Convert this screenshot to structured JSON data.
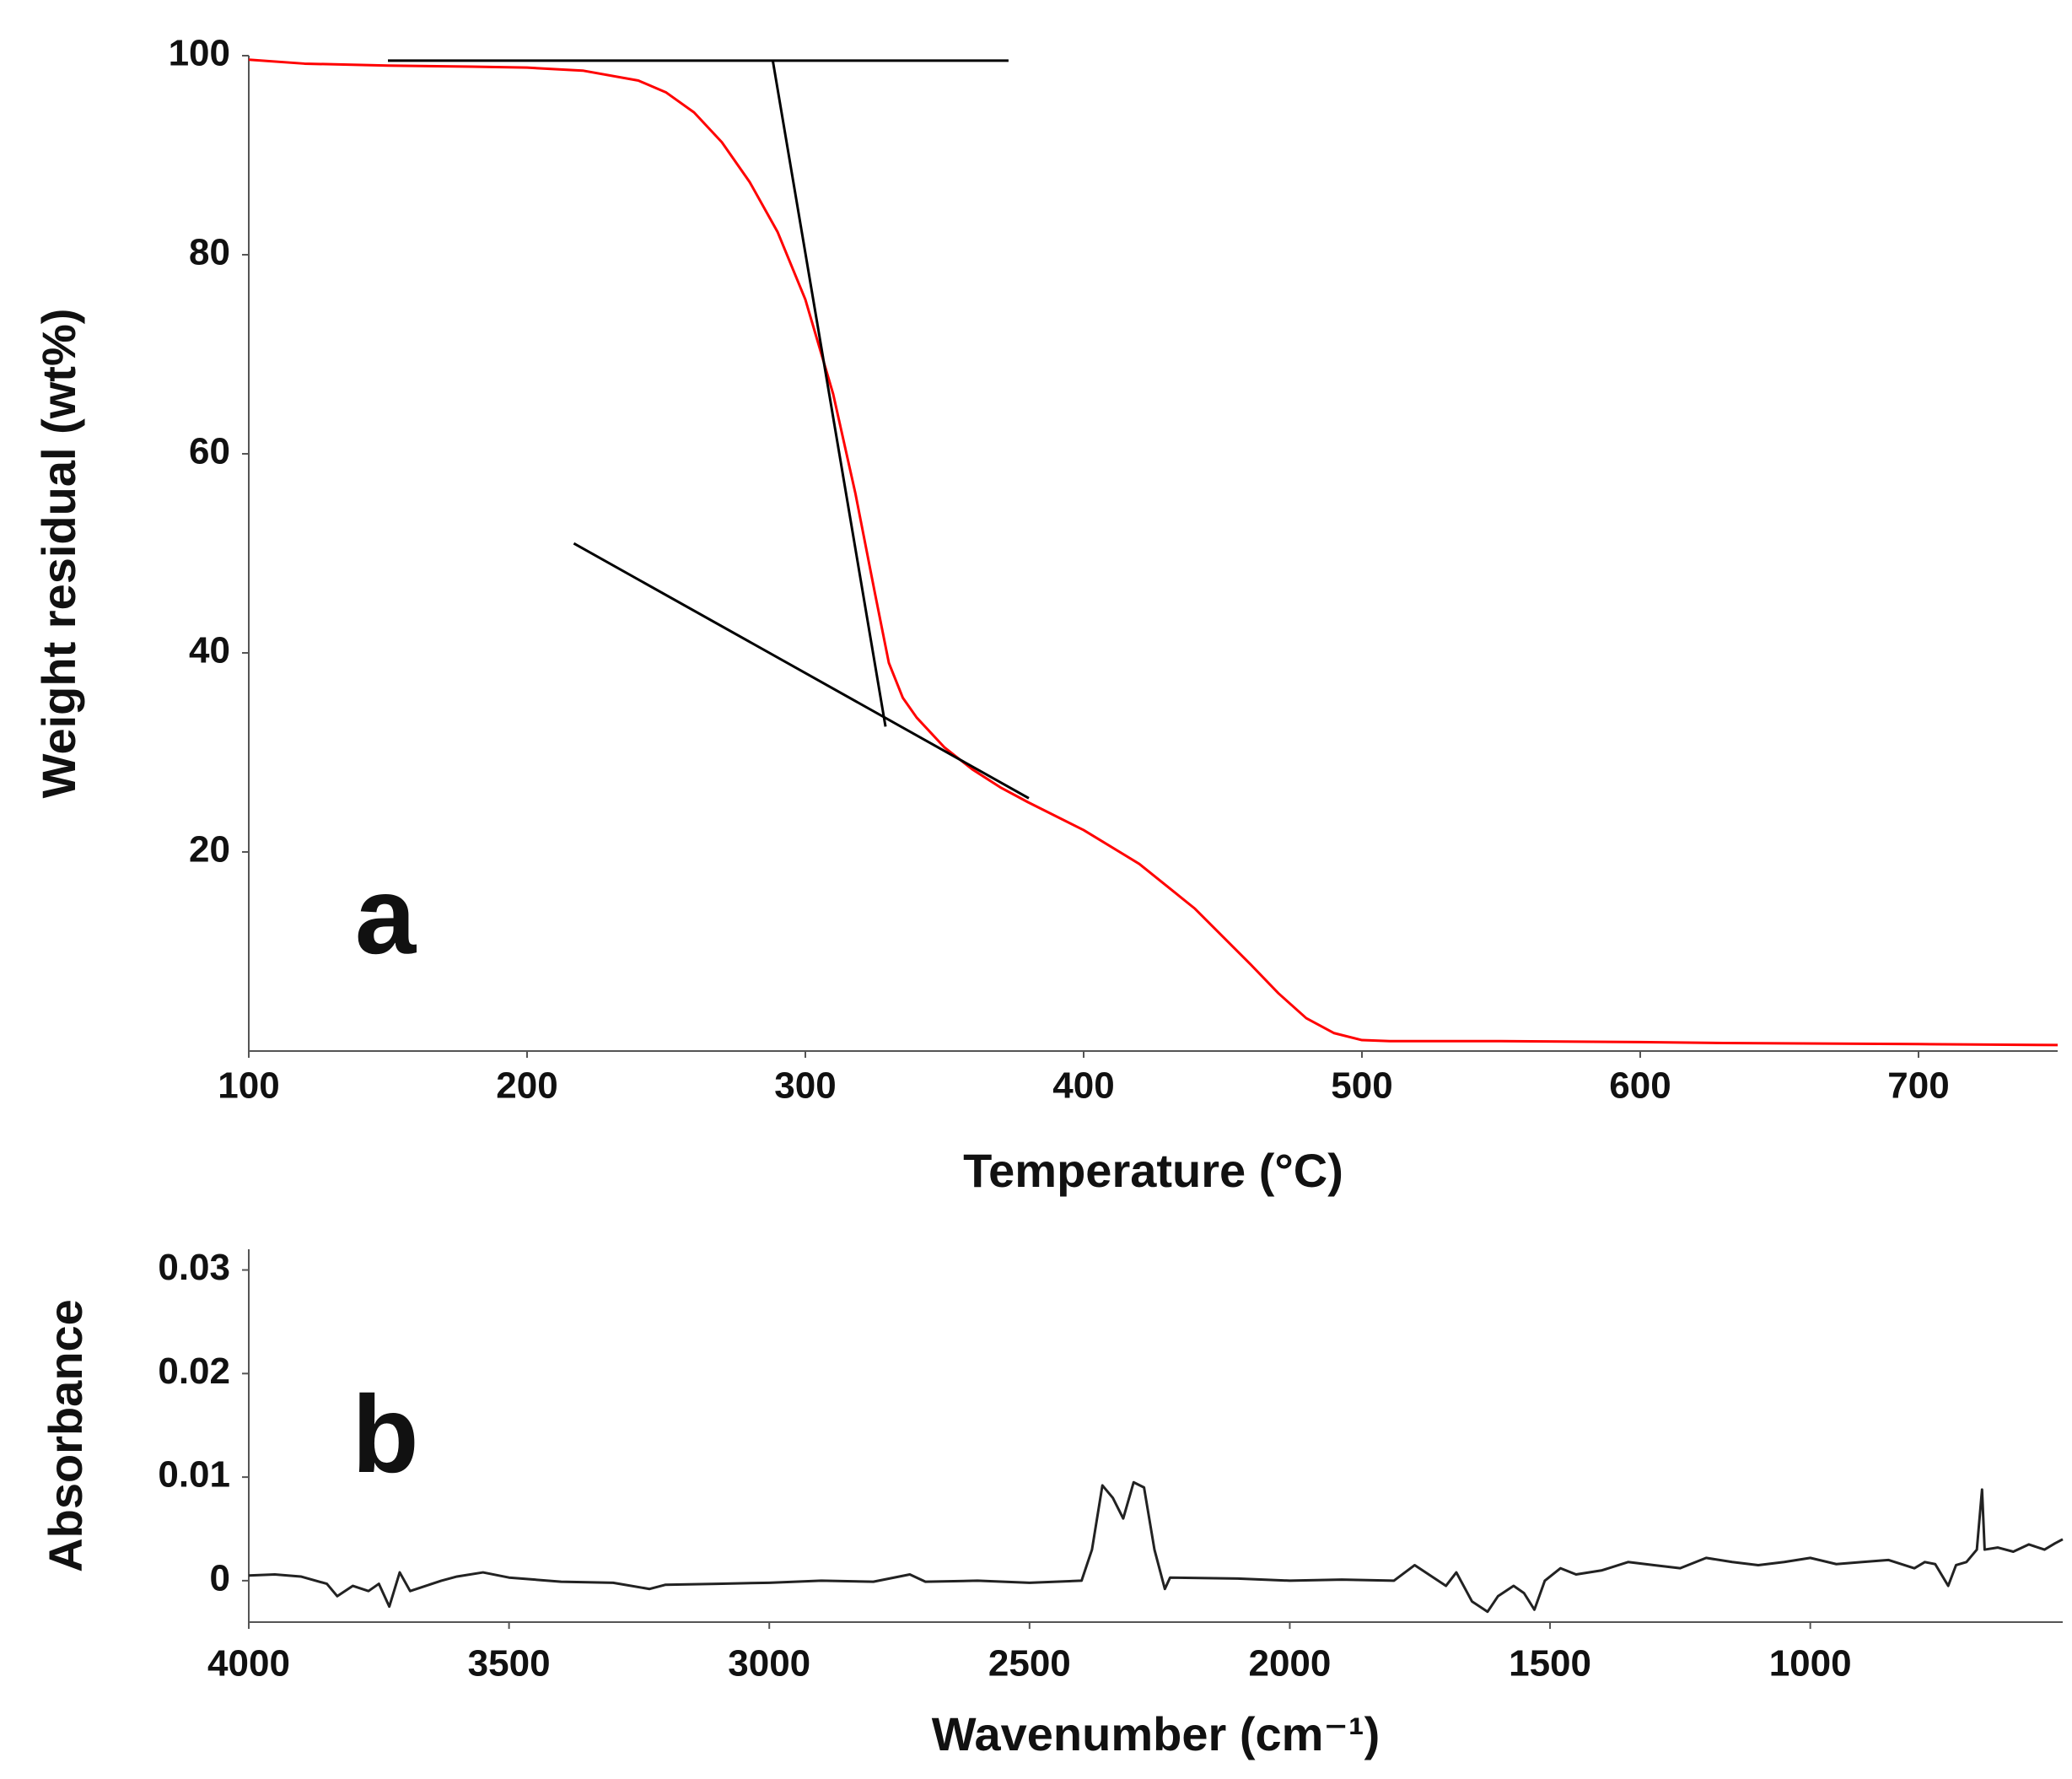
{
  "chart_data": [
    {
      "type": "line",
      "xlabel": "Temperature (°C)",
      "ylabel": "Weight residual (wt%)",
      "annotation": "a",
      "xlim": [
        100,
        750
      ],
      "xticks": [
        100,
        200,
        300,
        400,
        500,
        600,
        700
      ],
      "ylim": [
        0,
        100
      ],
      "yticks": [
        20,
        40,
        60,
        80,
        100
      ],
      "series": [
        {
          "color": "#ff0000",
          "x": [
            100,
            120,
            150,
            180,
            200,
            220,
            240,
            250,
            260,
            270,
            280,
            290,
            300,
            310,
            318,
            325,
            330,
            335,
            340,
            350,
            360,
            370,
            380,
            400,
            420,
            440,
            460,
            470,
            480,
            490,
            500,
            510,
            550,
            600,
            630,
            700,
            750
          ],
          "values": [
            99.6,
            99.2,
            99.0,
            98.9,
            98.8,
            98.5,
            97.5,
            96.3,
            94.3,
            91.3,
            87.3,
            82.3,
            75.5,
            66,
            56,
            46,
            39,
            35.5,
            33.5,
            30.5,
            28.3,
            26.5,
            25.0,
            22.2,
            18.8,
            14.3,
            8.7,
            5.8,
            3.3,
            1.8,
            1.1,
            1.0,
            1.0,
            0.9,
            0.8,
            0.7,
            0.6
          ]
        },
        {
          "color": "#000000",
          "x": [
            150,
            373
          ],
          "values": [
            99.5,
            99.5
          ]
        },
        {
          "color": "#000000",
          "x": [
            288.3,
            328.8
          ],
          "values": [
            99.5,
            32.6
          ]
        },
        {
          "color": "#000000",
          "x": [
            216.8,
            380.3
          ],
          "values": [
            51,
            25.4
          ]
        }
      ]
    },
    {
      "type": "line",
      "xlabel": "Wavenumber (cm⁻¹)",
      "ylabel": "Absorbance",
      "annotation": "b",
      "xlim": [
        4000,
        515
      ],
      "xticks": [
        4000,
        3500,
        3000,
        2500,
        2000,
        1500,
        1000
      ],
      "ylim": [
        -0.004,
        0.032
      ],
      "yticks": [
        0,
        0.01,
        0.02,
        0.03
      ],
      "series": [
        {
          "color": "#222222",
          "x": [
            4000,
            3950,
            3900,
            3850,
            3830,
            3800,
            3770,
            3750,
            3730,
            3710,
            3690,
            3660,
            3630,
            3600,
            3550,
            3500,
            3450,
            3400,
            3300,
            3230,
            3200,
            3100,
            3000,
            2900,
            2800,
            2730,
            2700,
            2600,
            2500,
            2400,
            2380,
            2360,
            2340,
            2320,
            2300,
            2280,
            2260,
            2240,
            2230,
            2100,
            2000,
            1900,
            1800,
            1760,
            1730,
            1700,
            1680,
            1650,
            1620,
            1600,
            1570,
            1550,
            1530,
            1510,
            1480,
            1450,
            1400,
            1350,
            1300,
            1250,
            1200,
            1150,
            1100,
            1050,
            1000,
            950,
            900,
            850,
            800,
            780,
            760,
            735,
            720,
            700,
            680,
            670,
            665,
            640,
            610,
            580,
            550,
            530,
            515
          ],
          "values": [
            0.0005,
            0.0006,
            0.0004,
            -0.0003,
            -0.0015,
            -0.0005,
            -0.001,
            -0.0003,
            -0.0025,
            0.0008,
            -0.001,
            -0.0005,
            0,
            0.0004,
            0.0008,
            0.0003,
            0.0001,
            -0.0001,
            -0.0002,
            -0.0008,
            -0.0004,
            -0.0003,
            -0.0002,
            0,
            -0.0001,
            0.0006,
            -0.0001,
            0,
            -0.0002,
            0,
            0.003,
            0.0092,
            0.008,
            0.006,
            0.0095,
            0.009,
            0.003,
            -0.0008,
            0.0003,
            0.0002,
            0,
            0.0001,
            0,
            0.0015,
            0.0005,
            -0.0005,
            0.0008,
            -0.002,
            -0.003,
            -0.0015,
            -0.0005,
            -0.0012,
            -0.0028,
            0,
            0.0012,
            0.0006,
            0.001,
            0.0018,
            0.0015,
            0.0012,
            0.0022,
            0.0018,
            0.0015,
            0.0018,
            0.0022,
            0.0016,
            0.0018,
            0.002,
            0.0012,
            0.0018,
            0.0016,
            -0.0005,
            0.0015,
            0.0018,
            0.003,
            0.0088,
            0.003,
            0.0032,
            0.0028,
            0.0035,
            0.003,
            0.0036,
            0.004
          ]
        }
      ]
    }
  ]
}
